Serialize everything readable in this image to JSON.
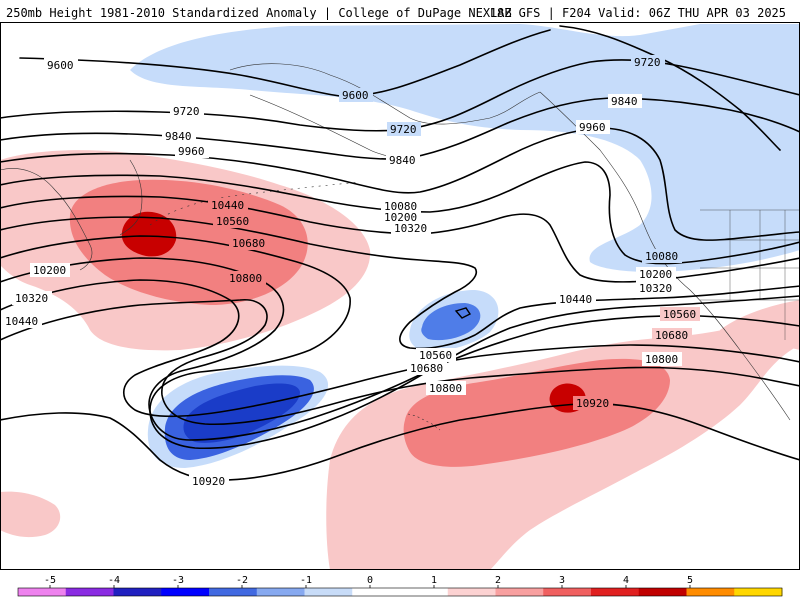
{
  "header": {
    "title_left": "250mb Height 1981-2010 Standardized Anomaly | College of DuPage NEXLAB",
    "title_right": "18Z GFS | F204 Valid: 06Z THU APR 03 2025"
  },
  "map": {
    "contour_labels": [
      {
        "id": "c9600a",
        "text": "9600"
      },
      {
        "id": "c9600b",
        "text": "9600"
      },
      {
        "id": "c9720a",
        "text": "9720"
      },
      {
        "id": "c9720b",
        "text": "9720"
      },
      {
        "id": "c9720c",
        "text": "9720"
      },
      {
        "id": "c9840a",
        "text": "9840"
      },
      {
        "id": "c9840b",
        "text": "9840"
      },
      {
        "id": "c9840c",
        "text": "9840"
      },
      {
        "id": "c9960a",
        "text": "9960"
      },
      {
        "id": "c9960b",
        "text": "9960"
      },
      {
        "id": "c10080a",
        "text": "10080"
      },
      {
        "id": "c10080b",
        "text": "10080"
      },
      {
        "id": "c10200a",
        "text": "10200"
      },
      {
        "id": "c10200b",
        "text": "10200"
      },
      {
        "id": "c10200c",
        "text": "10200"
      },
      {
        "id": "c10320a",
        "text": "10320"
      },
      {
        "id": "c10320b",
        "text": "10320"
      },
      {
        "id": "c10320c",
        "text": "10320"
      },
      {
        "id": "c10440a",
        "text": "10440"
      },
      {
        "id": "c10440b",
        "text": "10440"
      },
      {
        "id": "c10440c",
        "text": "10440"
      },
      {
        "id": "c10560a",
        "text": "10560"
      },
      {
        "id": "c10560b",
        "text": "10560"
      },
      {
        "id": "c10560c",
        "text": "10560"
      },
      {
        "id": "c10680a",
        "text": "10680"
      },
      {
        "id": "c10680b",
        "text": "10680"
      },
      {
        "id": "c10680c",
        "text": "10680"
      },
      {
        "id": "c10800a",
        "text": "10800"
      },
      {
        "id": "c10800b",
        "text": "10800"
      },
      {
        "id": "c10800c",
        "text": "10800"
      },
      {
        "id": "c10920a",
        "text": "10920"
      },
      {
        "id": "c10920b",
        "text": "10920"
      }
    ]
  },
  "legend": {
    "ticks": [
      "-5",
      "-4",
      "-3",
      "-2",
      "-1",
      "0",
      "1",
      "2",
      "3",
      "4",
      "5"
    ],
    "colors": [
      "#ee82ee",
      "#8a2be2",
      "#2020c0",
      "#0000ff",
      "#4169e1",
      "#87a9f0",
      "#c8dcf8",
      "#ffffff",
      "#ffffff",
      "#fcd2d2",
      "#f8a0a0",
      "#f06060",
      "#e02020",
      "#c00000",
      "#ff8c00",
      "#ffd700"
    ]
  }
}
